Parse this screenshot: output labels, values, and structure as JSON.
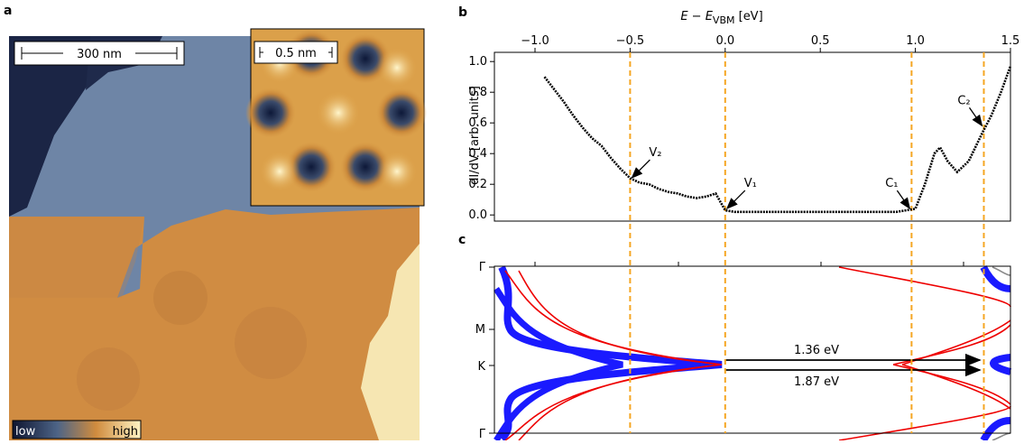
{
  "panel_a": {
    "label": "a",
    "scale_bar": "300 nm",
    "inset_scale_bar": "0.5 nm",
    "colorbar_low": "low",
    "colorbar_high": "high"
  },
  "chart_data": {
    "type": "line",
    "label": "b",
    "xlabel": {
      "main": "E − E",
      "sub": "VBM",
      "unit": " [eV]"
    },
    "ylabel": "dI/dV [arb. units]",
    "color": "#000000",
    "x": [
      -0.95,
      -0.9,
      -0.85,
      -0.8,
      -0.75,
      -0.7,
      -0.65,
      -0.6,
      -0.55,
      -0.5,
      -0.45,
      -0.4,
      -0.35,
      -0.3,
      -0.25,
      -0.2,
      -0.15,
      -0.1,
      -0.05,
      0.0,
      0.05,
      0.2,
      0.4,
      0.6,
      0.8,
      0.9,
      0.95,
      1.0,
      1.05,
      1.1,
      1.13,
      1.17,
      1.22,
      1.28,
      1.35,
      1.4,
      1.45,
      1.5
    ],
    "values": [
      0.9,
      0.82,
      0.74,
      0.65,
      0.57,
      0.5,
      0.45,
      0.37,
      0.3,
      0.24,
      0.21,
      0.2,
      0.17,
      0.15,
      0.14,
      0.12,
      0.11,
      0.12,
      0.14,
      0.03,
      0.02,
      0.02,
      0.02,
      0.02,
      0.02,
      0.02,
      0.03,
      0.04,
      0.2,
      0.4,
      0.44,
      0.35,
      0.28,
      0.35,
      0.53,
      0.65,
      0.8,
      0.97
    ],
    "xlim": [
      -1.0,
      1.5
    ],
    "ylim": [
      -0.04,
      1.06
    ],
    "xticks": [
      {
        "value": -1.0,
        "label": "−1.0"
      },
      {
        "value": -0.5,
        "label": "−0.5"
      },
      {
        "value": 0,
        "label": "0.0"
      },
      {
        "value": 0.5,
        "label": "0.5"
      },
      {
        "value": 1.0,
        "label": "1.0"
      },
      {
        "value": 1.5,
        "label": "1.5"
      }
    ],
    "yticks": [
      {
        "value": 0,
        "label": "0.0"
      },
      {
        "value": 0.2,
        "label": "0.2"
      },
      {
        "value": 0.4,
        "label": "0.4"
      },
      {
        "value": 0.6,
        "label": "0.6"
      },
      {
        "value": 0.8,
        "label": "0.8"
      },
      {
        "value": 1.0,
        "label": "1.0"
      }
    ],
    "vlines": [
      -0.5,
      0,
      0.98,
      1.36
    ],
    "vline_color": "#f5a623",
    "annotations": [
      {
        "text": "V₂",
        "x": -0.5,
        "y": 0.23
      },
      {
        "text": "V₁",
        "x": 0.0,
        "y": 0.03
      },
      {
        "text": "C₁",
        "x": 0.98,
        "y": 0.03
      },
      {
        "text": "C₂",
        "x": 1.36,
        "y": 0.57
      }
    ]
  },
  "panel_c": {
    "label": "c",
    "k_labels": [
      "Γ",
      "M",
      "K",
      "Γ"
    ],
    "gap_labels": [
      "1.36 eV",
      "1.87 eV"
    ]
  }
}
